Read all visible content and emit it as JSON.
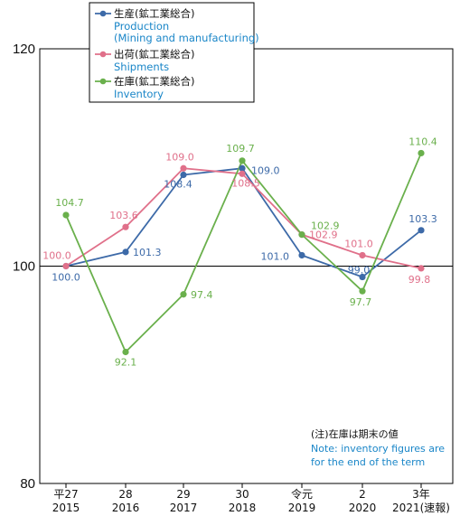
{
  "chart_data": {
    "type": "line",
    "categories": [
      [
        "平27",
        "2015"
      ],
      [
        "28",
        "2016"
      ],
      [
        "29",
        "2017"
      ],
      [
        "30",
        "2018"
      ],
      [
        "令元",
        "2019"
      ],
      [
        "2",
        "2020"
      ],
      [
        "3年",
        "2021(速報)"
      ]
    ],
    "ylim": [
      80,
      120
    ],
    "yticks": [
      80,
      100,
      120
    ],
    "reference_line": 100,
    "grid": false,
    "legend_position": "top-left",
    "series": [
      {
        "key": "production",
        "name": "生産(鉱工業総合)",
        "name_en": "Production",
        "name_en2": "(Mining and manufacturing)",
        "color": "#3d6aa8",
        "values": [
          100.0,
          101.3,
          108.4,
          109.0,
          101.0,
          99.0,
          103.3
        ],
        "labels": [
          "100.0",
          "101.3",
          "108.4",
          "109.0",
          "101.0",
          "99.0",
          "103.3"
        ]
      },
      {
        "key": "shipments",
        "name": "出荷(鉱工業総合)",
        "name_en": "Shipments",
        "color": "#e0708a",
        "values": [
          100.0,
          103.6,
          109.0,
          108.5,
          102.9,
          101.0,
          99.8
        ],
        "labels": [
          "100.0",
          "103.6",
          "109.0",
          "108.5",
          "102.9",
          "101.0",
          "99.8"
        ]
      },
      {
        "key": "inventory",
        "name": "在庫(鉱工業総合)",
        "name_en": "Inventory",
        "color": "#6ab04c",
        "values": [
          104.7,
          92.1,
          97.4,
          109.7,
          102.9,
          97.7,
          110.4
        ],
        "labels": [
          "104.7",
          "92.1",
          "97.4",
          "109.7",
          "102.9",
          "97.7",
          "110.4"
        ]
      }
    ],
    "note": {
      "jp": "(注)在庫は期末の値",
      "en1": "Note: inventory figures are",
      "en2": "for the end of the term"
    }
  },
  "colors": {
    "en_text": "#1a86c8"
  }
}
